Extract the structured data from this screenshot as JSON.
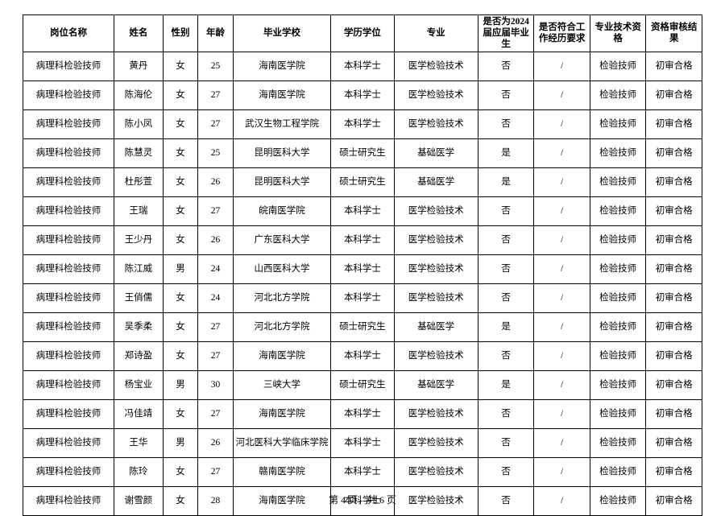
{
  "table": {
    "columns": [
      {
        "key": "position",
        "label": "岗位名称",
        "width": "13%"
      },
      {
        "key": "name",
        "label": "姓名",
        "width": "7%"
      },
      {
        "key": "gender",
        "label": "性别",
        "width": "5%"
      },
      {
        "key": "age",
        "label": "年龄",
        "width": "5%"
      },
      {
        "key": "school",
        "label": "毕业学校",
        "width": "14%"
      },
      {
        "key": "degree",
        "label": "学历学位",
        "width": "9%"
      },
      {
        "key": "major",
        "label": "专业",
        "width": "12%"
      },
      {
        "key": "is2024",
        "label": "是否为2024届应届毕业生",
        "width": "8%"
      },
      {
        "key": "workreq",
        "label": "是否符合工作经历要求",
        "width": "8%"
      },
      {
        "key": "protitle",
        "label": "专业技术资格",
        "width": "8%"
      },
      {
        "key": "result",
        "label": "资格审核结果",
        "width": "8%"
      }
    ],
    "header_fontsize": 11.5,
    "cell_fontsize": 11.5,
    "border_color": "#000000",
    "background_color": "#ffffff",
    "rows": [
      {
        "position": "病理科检验技师",
        "name": "黄丹",
        "gender": "女",
        "age": "25",
        "school": "海南医学院",
        "degree": "本科学士",
        "major": "医学检验技术",
        "is2024": "否",
        "workreq": "/",
        "protitle": "检验技师",
        "result": "初审合格"
      },
      {
        "position": "病理科检验技师",
        "name": "陈海伦",
        "gender": "女",
        "age": "27",
        "school": "海南医学院",
        "degree": "本科学士",
        "major": "医学检验技术",
        "is2024": "否",
        "workreq": "/",
        "protitle": "检验技师",
        "result": "初审合格"
      },
      {
        "position": "病理科检验技师",
        "name": "陈小凤",
        "gender": "女",
        "age": "27",
        "school": "武汉生物工程学院",
        "degree": "本科学士",
        "major": "医学检验技术",
        "is2024": "否",
        "workreq": "/",
        "protitle": "检验技师",
        "result": "初审合格"
      },
      {
        "position": "病理科检验技师",
        "name": "陈慧灵",
        "gender": "女",
        "age": "25",
        "school": "昆明医科大学",
        "degree": "硕士研究生",
        "major": "基础医学",
        "is2024": "是",
        "workreq": "/",
        "protitle": "检验技师",
        "result": "初审合格"
      },
      {
        "position": "病理科检验技师",
        "name": "杜彤萱",
        "gender": "女",
        "age": "26",
        "school": "昆明医科大学",
        "degree": "硕士研究生",
        "major": "基础医学",
        "is2024": "是",
        "workreq": "/",
        "protitle": "检验技师",
        "result": "初审合格"
      },
      {
        "position": "病理科检验技师",
        "name": "王瑞",
        "gender": "女",
        "age": "27",
        "school": "皖南医学院",
        "degree": "本科学士",
        "major": "医学检验技术",
        "is2024": "否",
        "workreq": "/",
        "protitle": "检验技师",
        "result": "初审合格"
      },
      {
        "position": "病理科检验技师",
        "name": "王少丹",
        "gender": "女",
        "age": "26",
        "school": "广东医科大学",
        "degree": "本科学士",
        "major": "医学检验技术",
        "is2024": "否",
        "workreq": "/",
        "protitle": "检验技师",
        "result": "初审合格"
      },
      {
        "position": "病理科检验技师",
        "name": "陈江威",
        "gender": "男",
        "age": "24",
        "school": "山西医科大学",
        "degree": "本科学士",
        "major": "医学检验技术",
        "is2024": "否",
        "workreq": "/",
        "protitle": "检验技师",
        "result": "初审合格"
      },
      {
        "position": "病理科检验技师",
        "name": "王俏儒",
        "gender": "女",
        "age": "24",
        "school": "河北北方学院",
        "degree": "本科学士",
        "major": "医学检验技术",
        "is2024": "否",
        "workreq": "/",
        "protitle": "检验技师",
        "result": "初审合格"
      },
      {
        "position": "病理科检验技师",
        "name": "吴季柔",
        "gender": "女",
        "age": "27",
        "school": "河北北方学院",
        "degree": "硕士研究生",
        "major": "基础医学",
        "is2024": "是",
        "workreq": "/",
        "protitle": "检验技师",
        "result": "初审合格"
      },
      {
        "position": "病理科检验技师",
        "name": "郑诗盈",
        "gender": "女",
        "age": "27",
        "school": "海南医学院",
        "degree": "本科学士",
        "major": "医学检验技术",
        "is2024": "否",
        "workreq": "/",
        "protitle": "检验技师",
        "result": "初审合格"
      },
      {
        "position": "病理科检验技师",
        "name": "杨宝业",
        "gender": "男",
        "age": "30",
        "school": "三峡大学",
        "degree": "硕士研究生",
        "major": "基础医学",
        "is2024": "是",
        "workreq": "/",
        "protitle": "检验技师",
        "result": "初审合格"
      },
      {
        "position": "病理科检验技师",
        "name": "冯佳靖",
        "gender": "女",
        "age": "27",
        "school": "海南医学院",
        "degree": "本科学士",
        "major": "医学检验技术",
        "is2024": "否",
        "workreq": "/",
        "protitle": "检验技师",
        "result": "初审合格"
      },
      {
        "position": "病理科检验技师",
        "name": "王华",
        "gender": "男",
        "age": "26",
        "school": "河北医科大学临床学院",
        "degree": "本科学士",
        "major": "医学检验技术",
        "is2024": "否",
        "workreq": "/",
        "protitle": "检验技师",
        "result": "初审合格"
      },
      {
        "position": "病理科检验技师",
        "name": "陈玲",
        "gender": "女",
        "age": "27",
        "school": "赣南医学院",
        "degree": "本科学士",
        "major": "医学检验技术",
        "is2024": "否",
        "workreq": "/",
        "protitle": "检验技师",
        "result": "初审合格"
      },
      {
        "position": "病理科检验技师",
        "name": "谢雪颜",
        "gender": "女",
        "age": "28",
        "school": "海南医学院",
        "degree": "本科学士",
        "major": "医学检验技术",
        "is2024": "否",
        "workreq": "/",
        "protitle": "检验技师",
        "result": "初审合格"
      }
    ]
  },
  "footer": {
    "text": "第 4 页，共 6 页"
  }
}
